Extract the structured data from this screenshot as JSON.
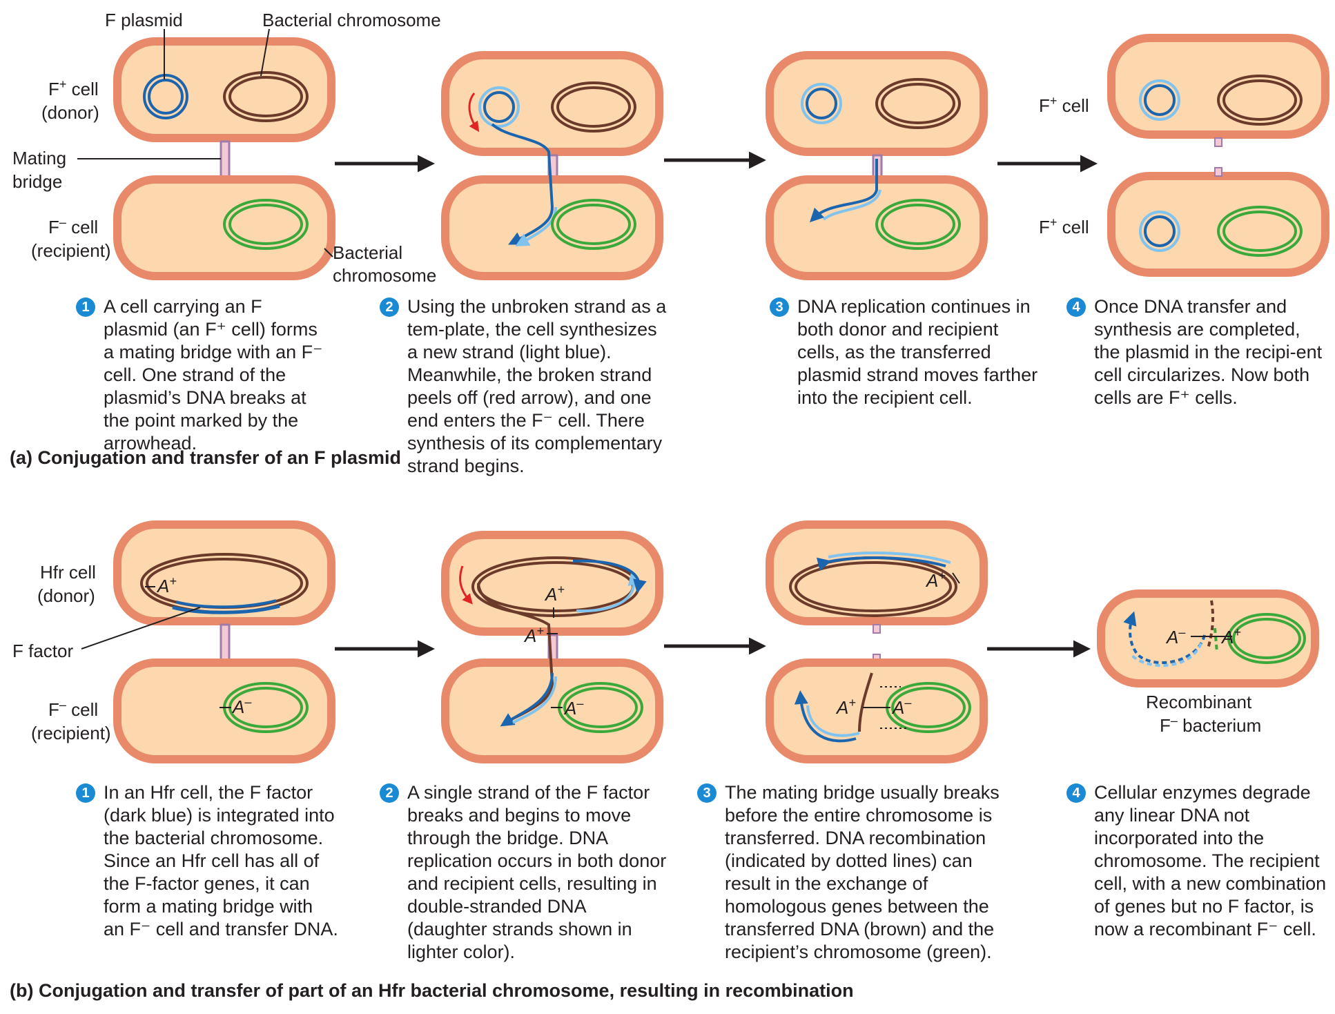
{
  "section_a": {
    "caption": "(a) Conjugation and transfer of an F plasmid",
    "labels": {
      "f_plasmid": "F plasmid",
      "bacterial_chromosome": "Bacterial chromosome",
      "f_plus_cell": "F",
      "f_plus_sup": "+",
      "cell_word": " cell",
      "donor": "(donor)",
      "mating": "Mating",
      "bridge": "bridge",
      "f_minus_cell": "F",
      "f_minus_sup": "–",
      "recipient": "(recipient)",
      "bacterial": "Bacterial",
      "chromosome": "chromosome"
    },
    "steps": [
      {
        "num": "1",
        "text": "A cell carrying an F plasmid (an F⁺ cell) forms a mating bridge with an F⁻ cell. One strand of the plasmid’s DNA breaks at the point marked by the arrowhead."
      },
      {
        "num": "2",
        "text": "Using the unbroken strand as a tem-plate, the cell synthesizes a new strand (light blue). Meanwhile, the broken strand peels off (red arrow), and one end enters the F⁻ cell. There synthesis of its complementary strand begins."
      },
      {
        "num": "3",
        "text": "DNA replication continues in both donor and recipient cells, as the transferred plasmid strand moves farther into the recipient cell."
      },
      {
        "num": "4",
        "text": "Once DNA transfer and synthesis are completed, the plasmid in the recipi-ent cell circularizes. Now both cells are F⁺ cells."
      }
    ]
  },
  "section_b": {
    "caption": "(b) Conjugation and transfer of part of an Hfr bacterial chromosome, resulting in recombination",
    "labels": {
      "hfr_cell": "Hfr cell",
      "donor": "(donor)",
      "f_factor": "F factor",
      "f_minus_cell": "F",
      "f_minus_sup": "–",
      "cell_word": " cell",
      "recipient": "(recipient)",
      "a_plus": "A",
      "plus": "+",
      "a_minus": "A",
      "minus": "–",
      "recombinant": "Recombinant",
      "bacterium": " bacterium"
    },
    "steps": [
      {
        "num": "1",
        "text": "In an Hfr cell, the F factor (dark blue) is integrated into the bacterial chromosome. Since an Hfr cell has all of the F-factor genes, it can form a mating bridge with an F⁻ cell and transfer DNA."
      },
      {
        "num": "2",
        "text": "A single strand of the F factor breaks and begins to move through the bridge. DNA replication occurs in both donor and recipient cells, resulting in double-stranded DNA (daughter strands shown in lighter color)."
      },
      {
        "num": "3",
        "text": "The mating bridge usually breaks before the entire chromosome is transferred. DNA recombination (indicated by dotted lines) can result in the exchange of homologous genes between the transferred DNA (brown) and the recipient’s chromosome (green)."
      },
      {
        "num": "4",
        "text": "Cellular enzymes degrade any linear DNA not incorporated into the chromosome. The recipient cell, with a new combination of genes but no F factor, is now a recombinant F⁻ cell."
      }
    ]
  },
  "colors": {
    "cell_wall": "#e88a6a",
    "cytoplasm": "#fdd7ae",
    "chromosome": "#6b3a2a",
    "recipient_chromosome": "#3aa93a",
    "f_dna_dark": "#1b65ae",
    "f_dna_light": "#7fc3ee",
    "peel_arrow": "#e02424",
    "badge": "#1a8ad4"
  }
}
